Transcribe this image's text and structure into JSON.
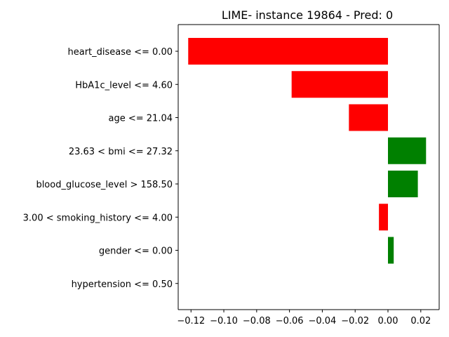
{
  "chart_data": {
    "type": "bar",
    "orientation": "horizontal",
    "title": "LIME- instance 19864 - Pred: 0",
    "xlabel": "",
    "ylabel": "",
    "categories": [
      "heart_disease <= 0.00",
      "HbA1c_level <= 4.60",
      "age <= 21.04",
      "23.63 < bmi <= 27.32",
      "blood_glucose_level > 158.50",
      "3.00 < smoking_history <= 4.00",
      "gender <= 0.00",
      "hypertension <= 0.50"
    ],
    "values": [
      -0.1217,
      -0.0587,
      -0.0238,
      0.0232,
      0.0182,
      -0.0055,
      0.0035,
      0.0
    ],
    "xlim": [
      -0.1278,
      0.0312
    ],
    "xticks": [
      -0.12,
      -0.1,
      -0.08,
      -0.06,
      -0.04,
      -0.02,
      0.0,
      0.02
    ],
    "xtick_labels": [
      "−0.12",
      "−0.10",
      "−0.08",
      "−0.06",
      "−0.04",
      "−0.02",
      "0.00",
      "0.02"
    ],
    "colors": {
      "negative": "#ff0000",
      "positive": "#008000"
    },
    "grid": false,
    "legend": "none"
  }
}
